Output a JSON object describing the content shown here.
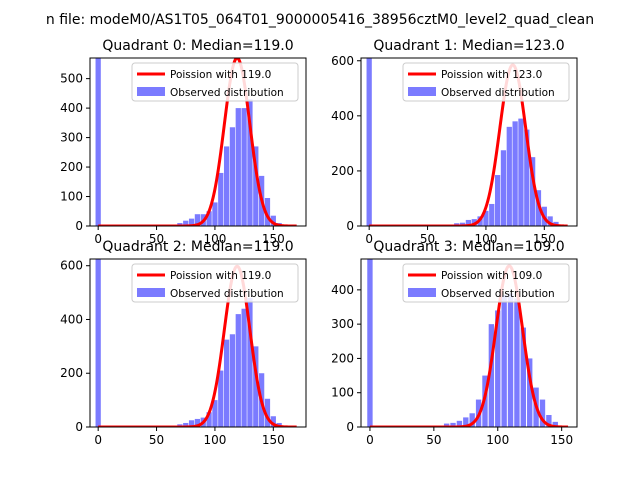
{
  "figure": {
    "suptitle": "n file: modeM0/AS1T05_064T01_9000005416_38956cztM0_level2_quad_clean",
    "legend_labels": {
      "fit": "Poission with",
      "observed": "Observed distribution"
    },
    "colors": {
      "fit": "#ff0000",
      "observed": "#7b7bff"
    }
  },
  "chart_data": [
    {
      "type": "bar",
      "title": "Quadrant 0: Median=119.0",
      "legend_fit": "Poission with 119.0",
      "legend_observed": "Observed distribution",
      "legend_position": "upper right",
      "xlim": [
        -7,
        178
      ],
      "ylim": [
        0,
        570
      ],
      "xticks": [
        0,
        50,
        100,
        150
      ],
      "yticks": [
        0,
        100,
        200,
        300,
        400,
        500
      ],
      "xtick_labels": [
        "0",
        "50",
        "100",
        "150"
      ],
      "ytick_labels": [
        "0",
        "100",
        "200",
        "300",
        "400",
        "500"
      ],
      "mu": 119.0,
      "scale": 570,
      "fit_range": [
        0,
        170
      ],
      "bin_width": 4.5,
      "bins": [
        [
          0,
          570
        ],
        [
          70,
          10
        ],
        [
          75,
          18
        ],
        [
          80,
          25
        ],
        [
          85,
          40
        ],
        [
          90,
          40
        ],
        [
          95,
          50
        ],
        [
          100,
          80
        ],
        [
          105,
          180
        ],
        [
          110,
          270
        ],
        [
          115,
          335
        ],
        [
          120,
          400
        ],
        [
          125,
          400
        ],
        [
          130,
          430
        ],
        [
          135,
          270
        ],
        [
          140,
          170
        ],
        [
          145,
          95
        ],
        [
          150,
          35
        ],
        [
          155,
          10
        ]
      ]
    },
    {
      "type": "bar",
      "title": "Quadrant 1: Median=123.0",
      "legend_fit": "Poission with 123.0",
      "legend_observed": "Observed distribution",
      "legend_position": "upper right",
      "xlim": [
        -7,
        178
      ],
      "ylim": [
        0,
        610
      ],
      "xticks": [
        0,
        50,
        100,
        150
      ],
      "yticks": [
        0,
        200,
        400,
        600
      ],
      "xtick_labels": [
        "0",
        "50",
        "100",
        "150"
      ],
      "ytick_labels": [
        "0",
        "200",
        "400",
        "600"
      ],
      "mu": 123.0,
      "scale": 585,
      "fit_range": [
        0,
        170
      ],
      "bin_width": 4.5,
      "bins": [
        [
          0,
          610
        ],
        [
          75,
          10
        ],
        [
          80,
          12
        ],
        [
          85,
          22
        ],
        [
          90,
          25
        ],
        [
          95,
          35
        ],
        [
          100,
          55
        ],
        [
          105,
          80
        ],
        [
          110,
          185
        ],
        [
          115,
          275
        ],
        [
          120,
          360
        ],
        [
          125,
          380
        ],
        [
          130,
          390
        ],
        [
          135,
          350
        ],
        [
          140,
          250
        ],
        [
          145,
          130
        ],
        [
          150,
          70
        ],
        [
          155,
          35
        ],
        [
          160,
          15
        ]
      ]
    },
    {
      "type": "bar",
      "title": "Quadrant 2: Median=119.0",
      "legend_fit": "Poission with 119.0",
      "legend_observed": "Observed distribution",
      "legend_position": "upper right",
      "xlim": [
        -7,
        178
      ],
      "ylim": [
        0,
        625
      ],
      "xticks": [
        0,
        50,
        100,
        150
      ],
      "yticks": [
        0,
        200,
        400,
        600
      ],
      "xtick_labels": [
        "0",
        "50",
        "100",
        "150"
      ],
      "ytick_labels": [
        "0",
        "200",
        "400",
        "600"
      ],
      "mu": 119.0,
      "scale": 598,
      "fit_range": [
        0,
        170
      ],
      "bin_width": 4.5,
      "bins": [
        [
          0,
          625
        ],
        [
          70,
          10
        ],
        [
          75,
          15
        ],
        [
          80,
          25
        ],
        [
          85,
          30
        ],
        [
          90,
          35
        ],
        [
          95,
          55
        ],
        [
          100,
          100
        ],
        [
          105,
          210
        ],
        [
          110,
          325
        ],
        [
          115,
          345
        ],
        [
          120,
          420
        ],
        [
          125,
          440
        ],
        [
          130,
          480
        ],
        [
          135,
          300
        ],
        [
          140,
          200
        ],
        [
          145,
          105
        ],
        [
          150,
          40
        ],
        [
          155,
          15
        ]
      ]
    },
    {
      "type": "bar",
      "title": "Quadrant 3: Median=109.0",
      "legend_fit": "Poission with 109.0",
      "legend_observed": "Observed distribution",
      "legend_position": "upper right",
      "xlim": [
        -7,
        162
      ],
      "ylim": [
        0,
        490
      ],
      "xticks": [
        0,
        50,
        100,
        150
      ],
      "yticks": [
        0,
        100,
        200,
        300,
        400
      ],
      "xtick_labels": [
        "0",
        "50",
        "100",
        "150"
      ],
      "ytick_labels": [
        "0",
        "100",
        "200",
        "300",
        "400"
      ],
      "mu": 109.0,
      "scale": 470,
      "fit_range": [
        0,
        155
      ],
      "bin_width": 4.2,
      "bins": [
        [
          0,
          490
        ],
        [
          60,
          10
        ],
        [
          65,
          12
        ],
        [
          70,
          18
        ],
        [
          75,
          28
        ],
        [
          80,
          40
        ],
        [
          85,
          80
        ],
        [
          90,
          150
        ],
        [
          95,
          300
        ],
        [
          100,
          340
        ],
        [
          105,
          385
        ],
        [
          110,
          390
        ],
        [
          115,
          375
        ],
        [
          120,
          290
        ],
        [
          125,
          200
        ],
        [
          130,
          115
        ],
        [
          135,
          80
        ],
        [
          140,
          35
        ],
        [
          145,
          15
        ]
      ]
    }
  ]
}
